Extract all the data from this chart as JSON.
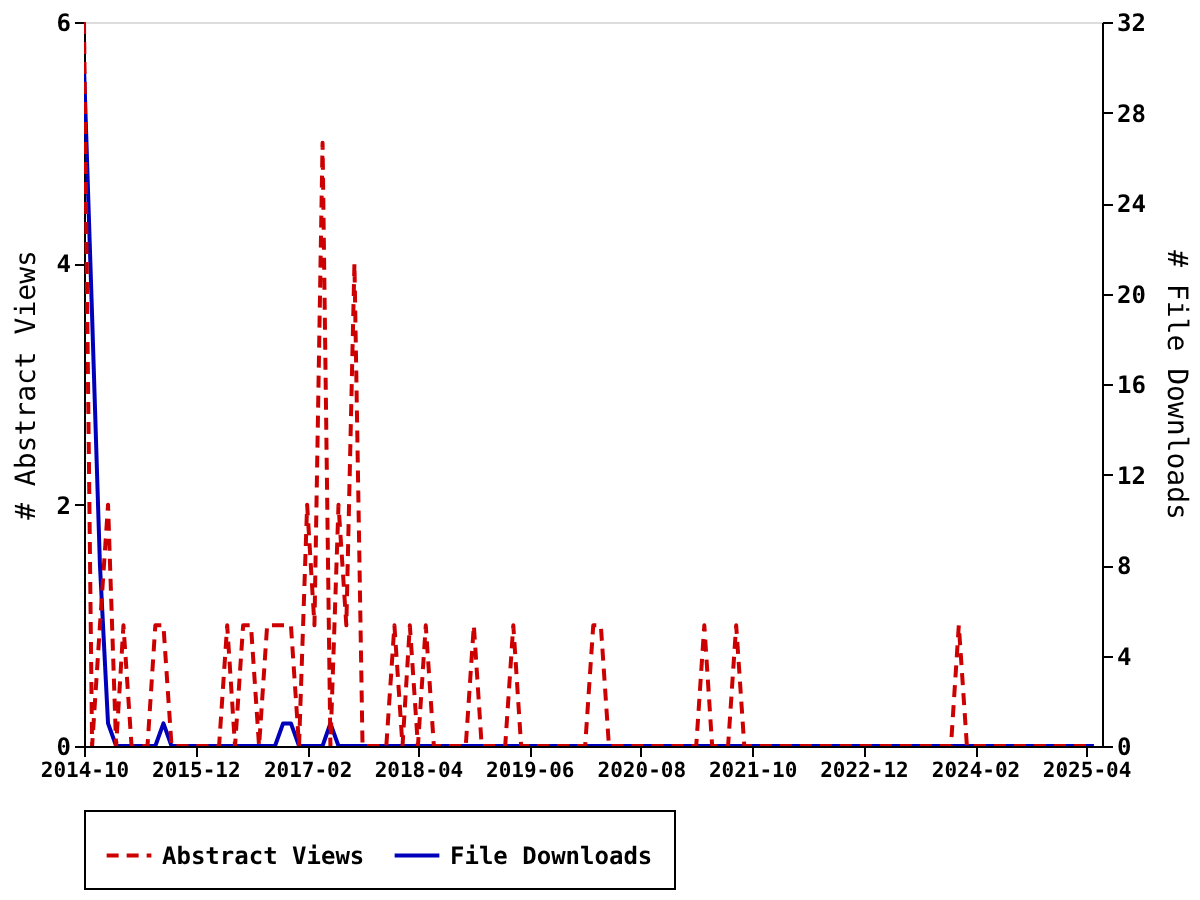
{
  "chart_data": {
    "type": "line",
    "ylabel": "# Abstract Views",
    "y2label": "# File Downloads",
    "x": [
      "2014-10",
      "2014-11",
      "2014-12",
      "2015-01",
      "2015-02",
      "2015-03",
      "2015-04",
      "2015-05",
      "2015-06",
      "2015-07",
      "2015-08",
      "2015-09",
      "2015-10",
      "2015-11",
      "2015-12",
      "2016-01",
      "2016-02",
      "2016-03",
      "2016-04",
      "2016-05",
      "2016-06",
      "2016-07",
      "2016-08",
      "2016-09",
      "2016-10",
      "2016-11",
      "2016-12",
      "2017-01",
      "2017-02",
      "2017-03",
      "2017-04",
      "2017-05",
      "2017-06",
      "2017-07",
      "2017-08",
      "2017-09",
      "2017-10",
      "2017-11",
      "2017-12",
      "2018-01",
      "2018-02",
      "2018-03",
      "2018-04",
      "2018-05",
      "2018-06",
      "2018-07",
      "2018-08",
      "2018-09",
      "2018-10",
      "2018-11",
      "2018-12",
      "2019-01",
      "2019-02",
      "2019-03",
      "2019-04",
      "2019-05",
      "2019-06",
      "2019-07",
      "2019-08",
      "2019-09",
      "2019-10",
      "2019-11",
      "2019-12",
      "2020-01",
      "2020-02",
      "2020-03",
      "2020-04",
      "2020-05",
      "2020-06",
      "2020-07",
      "2020-08",
      "2020-09",
      "2020-10",
      "2020-11",
      "2020-12",
      "2021-01",
      "2021-02",
      "2021-03",
      "2021-04",
      "2021-05",
      "2021-06",
      "2021-07",
      "2021-08",
      "2021-09",
      "2021-10",
      "2021-11",
      "2021-12",
      "2022-01",
      "2022-02",
      "2022-03",
      "2022-04",
      "2022-05",
      "2022-06",
      "2022-07",
      "2022-08",
      "2022-09",
      "2022-10",
      "2022-11",
      "2022-12",
      "2023-01",
      "2023-02",
      "2023-03",
      "2023-04",
      "2023-05",
      "2023-06",
      "2023-07",
      "2023-08",
      "2023-09",
      "2023-10",
      "2023-11",
      "2023-12",
      "2024-01",
      "2024-02",
      "2024-03",
      "2024-04",
      "2024-05",
      "2024-06",
      "2024-07",
      "2024-08",
      "2024-09",
      "2024-10",
      "2024-11",
      "2024-12",
      "2025-01",
      "2025-02",
      "2025-03",
      "2025-04",
      "2025-05"
    ],
    "series": [
      {
        "name": "Abstract Views",
        "color": "#cc0000",
        "line_style": "dashed",
        "values": [
          6,
          0,
          1,
          2,
          0,
          1,
          0,
          0,
          0,
          1,
          1,
          0,
          0,
          0,
          0,
          0,
          0,
          0,
          1,
          0,
          1,
          1,
          0,
          1,
          1,
          1,
          1,
          0,
          2,
          1,
          5,
          0,
          2,
          1,
          4,
          0,
          0,
          0,
          0,
          1,
          0,
          1,
          0,
          1,
          0,
          0,
          0,
          0,
          0,
          1,
          0,
          0,
          0,
          0,
          1,
          0,
          0,
          0,
          0,
          0,
          0,
          0,
          0,
          0,
          1,
          1,
          0,
          0,
          0,
          0,
          0,
          0,
          0,
          0,
          0,
          0,
          0,
          0,
          1,
          0,
          0,
          0,
          1,
          0,
          0,
          0,
          0,
          0,
          0,
          0,
          0,
          0,
          0,
          0,
          0,
          0,
          0,
          0,
          0,
          0,
          0,
          0,
          0,
          0,
          0,
          0,
          0,
          0,
          0,
          0,
          1,
          0,
          0,
          0,
          0,
          0,
          0,
          0,
          0,
          0,
          0,
          0,
          0,
          0,
          0,
          0,
          0,
          0
        ]
      },
      {
        "name": "File Downloads",
        "color": "#0000bb",
        "line_style": "solid",
        "axis": "y2",
        "values": [
          30,
          19,
          8,
          1,
          0,
          0,
          0,
          0,
          0,
          0,
          1,
          0,
          0,
          0,
          0,
          0,
          0,
          0,
          0,
          0,
          0,
          0,
          0,
          0,
          0,
          1,
          1,
          0,
          0,
          0,
          0,
          1,
          0,
          0,
          0,
          0,
          0,
          0,
          0,
          0,
          0,
          0,
          0,
          0,
          0,
          0,
          0,
          0,
          0,
          0,
          0,
          0,
          0,
          0,
          0,
          0,
          0,
          0,
          0,
          0,
          0,
          0,
          0,
          0,
          0,
          0,
          0,
          0,
          0,
          0,
          0,
          0,
          0,
          0,
          0,
          0,
          0,
          0,
          0,
          0,
          0,
          0,
          0,
          0,
          0,
          0,
          0,
          0,
          0,
          0,
          0,
          0,
          0,
          0,
          0,
          0,
          0,
          0,
          0,
          0,
          0,
          0,
          0,
          0,
          0,
          0,
          0,
          0,
          0,
          0,
          0,
          0,
          0,
          0,
          0,
          0,
          0,
          0,
          0,
          0,
          0,
          0,
          0,
          0,
          0,
          0,
          0,
          0
        ]
      }
    ],
    "xlim": [
      "2014-10",
      "2025-06"
    ],
    "xticks": [
      "2014-10",
      "2015-12",
      "2017-02",
      "2018-04",
      "2019-06",
      "2020-08",
      "2021-10",
      "2022-12",
      "2024-02",
      "2025-04"
    ],
    "ylim": [
      0,
      6
    ],
    "yticks": [
      0,
      2,
      4,
      6
    ],
    "y2lim": [
      0,
      32
    ],
    "y2ticks": [
      0,
      4,
      8,
      12,
      16,
      20,
      24,
      28,
      32
    ],
    "grid": false,
    "legend": "bottom",
    "marker": "none"
  }
}
